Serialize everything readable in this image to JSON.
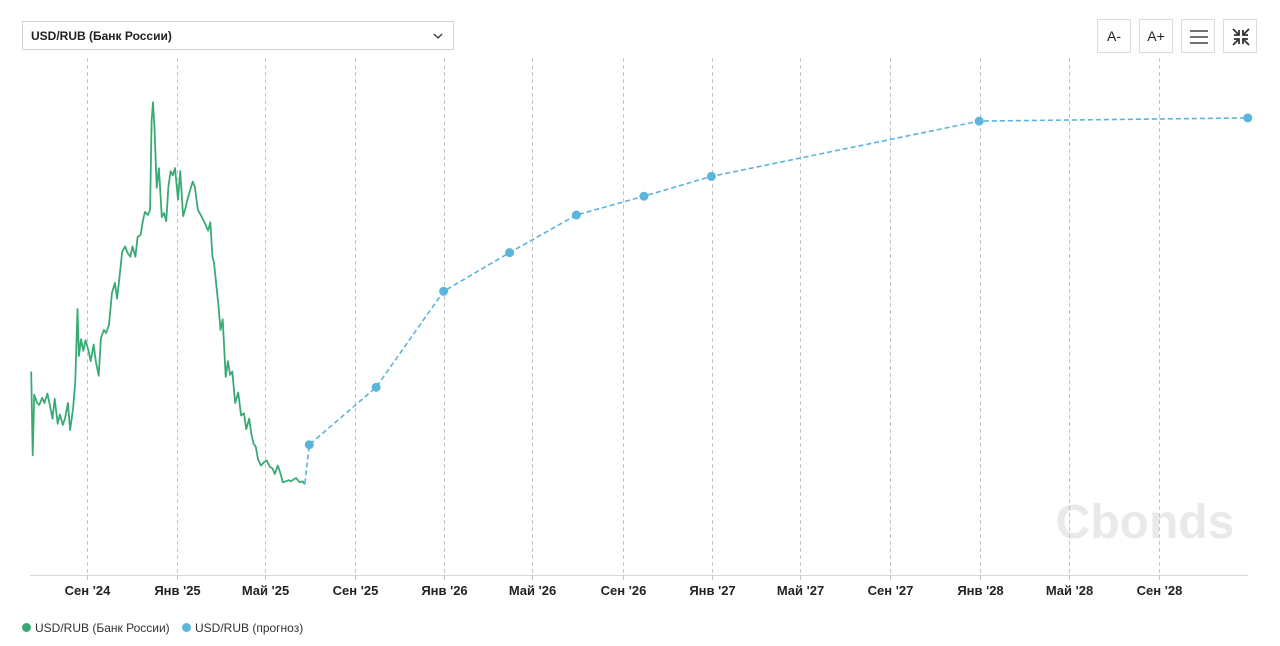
{
  "selector": {
    "value": "USD/RUB (Банк России)"
  },
  "toolbar": {
    "font_decrease": "A-",
    "font_increase": "A+"
  },
  "watermark": "Cbonds",
  "legend": [
    {
      "label": "USD/RUB (Банк России)",
      "color": "#3aaa74"
    },
    {
      "label": "USD/RUB (прогноз)",
      "color": "#5ab4dc"
    }
  ],
  "chart_data": {
    "type": "line",
    "x_tick_labels": [
      "Сен '24",
      "Янв '25",
      "Май '25",
      "Сен '25",
      "Янв '26",
      "Май '26",
      "Сен '26",
      "Янв '27",
      "Май '27",
      "Сен '27",
      "Янв '28",
      "Май '28",
      "Сен '28"
    ],
    "x_ticks": [
      "2024-09-01",
      "2025-01-01",
      "2025-05-01",
      "2025-09-01",
      "2026-01-01",
      "2026-05-01",
      "2026-09-01",
      "2027-01-01",
      "2027-05-01",
      "2027-09-01",
      "2028-01-01",
      "2028-05-01",
      "2028-09-01"
    ],
    "x_range": [
      "2024-06-15",
      "2028-12-31"
    ],
    "y_range": [
      70,
      120
    ],
    "y_axis_labels": false,
    "grid": "vertical dashed",
    "legend_position": "bottom-left",
    "series": [
      {
        "name": "USD/RUB (Банк России)",
        "color": "#3aaa74",
        "style": "solid",
        "points": [
          [
            "2024-06-17",
            89.0
          ],
          [
            "2024-06-19",
            81.0
          ],
          [
            "2024-06-21",
            86.8
          ],
          [
            "2024-06-25",
            86.0
          ],
          [
            "2024-06-28",
            85.8
          ],
          [
            "2024-07-02",
            86.5
          ],
          [
            "2024-07-05",
            86.0
          ],
          [
            "2024-07-09",
            86.9
          ],
          [
            "2024-07-12",
            85.9
          ],
          [
            "2024-07-16",
            84.5
          ],
          [
            "2024-07-19",
            86.4
          ],
          [
            "2024-07-23",
            84.0
          ],
          [
            "2024-07-26",
            84.9
          ],
          [
            "2024-07-30",
            83.9
          ],
          [
            "2024-08-02",
            84.5
          ],
          [
            "2024-08-06",
            86.0
          ],
          [
            "2024-08-09",
            83.4
          ],
          [
            "2024-08-13",
            85.5
          ],
          [
            "2024-08-16",
            88.1
          ],
          [
            "2024-08-19",
            95.0
          ],
          [
            "2024-08-21",
            90.5
          ],
          [
            "2024-08-24",
            92.1
          ],
          [
            "2024-08-27",
            91.0
          ],
          [
            "2024-08-30",
            92.0
          ],
          [
            "2024-09-03",
            91.0
          ],
          [
            "2024-09-06",
            90.0
          ],
          [
            "2024-09-10",
            91.6
          ],
          [
            "2024-09-13",
            90.0
          ],
          [
            "2024-09-17",
            88.6
          ],
          [
            "2024-09-20",
            92.2
          ],
          [
            "2024-09-24",
            93.0
          ],
          [
            "2024-09-27",
            92.7
          ],
          [
            "2024-10-01",
            93.5
          ],
          [
            "2024-10-05",
            96.5
          ],
          [
            "2024-10-09",
            97.5
          ],
          [
            "2024-10-12",
            96.0
          ],
          [
            "2024-10-16",
            98.5
          ],
          [
            "2024-10-19",
            100.5
          ],
          [
            "2024-10-23",
            101.0
          ],
          [
            "2024-10-26",
            100.4
          ],
          [
            "2024-10-30",
            100.0
          ],
          [
            "2024-11-02",
            101.0
          ],
          [
            "2024-11-06",
            100.0
          ],
          [
            "2024-11-09",
            101.9
          ],
          [
            "2024-11-13",
            102.1
          ],
          [
            "2024-11-16",
            103.4
          ],
          [
            "2024-11-19",
            104.3
          ],
          [
            "2024-11-23",
            104.0
          ],
          [
            "2024-11-26",
            104.5
          ],
          [
            "2024-11-28",
            113.0
          ],
          [
            "2024-11-30",
            114.8
          ],
          [
            "2024-12-02",
            112.3
          ],
          [
            "2024-12-05",
            106.6
          ],
          [
            "2024-12-08",
            108.5
          ],
          [
            "2024-12-12",
            103.8
          ],
          [
            "2024-12-15",
            104.2
          ],
          [
            "2024-12-18",
            103.4
          ],
          [
            "2024-12-21",
            106.7
          ],
          [
            "2024-12-24",
            108.2
          ],
          [
            "2024-12-27",
            107.8
          ],
          [
            "2024-12-30",
            108.5
          ],
          [
            "2025-01-03",
            105.5
          ],
          [
            "2025-01-06",
            108.2
          ],
          [
            "2025-01-10",
            103.9
          ],
          [
            "2025-01-13",
            104.6
          ],
          [
            "2025-01-16",
            105.5
          ],
          [
            "2025-01-20",
            106.5
          ],
          [
            "2025-01-23",
            107.2
          ],
          [
            "2025-01-26",
            106.7
          ],
          [
            "2025-01-30",
            104.5
          ],
          [
            "2025-02-03",
            104.0
          ],
          [
            "2025-02-06",
            103.6
          ],
          [
            "2025-02-10",
            103.0
          ],
          [
            "2025-02-13",
            102.5
          ],
          [
            "2025-02-16",
            103.3
          ],
          [
            "2025-02-19",
            100.0
          ],
          [
            "2025-02-21",
            99.5
          ],
          [
            "2025-02-24",
            97.5
          ],
          [
            "2025-02-27",
            95.5
          ],
          [
            "2025-03-02",
            93.0
          ],
          [
            "2025-03-05",
            94.0
          ],
          [
            "2025-03-09",
            88.5
          ],
          [
            "2025-03-12",
            90.0
          ],
          [
            "2025-03-15",
            88.7
          ],
          [
            "2025-03-18",
            89.0
          ],
          [
            "2025-03-22",
            86.0
          ],
          [
            "2025-03-26",
            87.0
          ],
          [
            "2025-03-30",
            84.8
          ],
          [
            "2025-04-03",
            85.0
          ],
          [
            "2025-04-06",
            83.5
          ],
          [
            "2025-04-10",
            84.5
          ],
          [
            "2025-04-13",
            83.0
          ],
          [
            "2025-04-16",
            82.1
          ],
          [
            "2025-04-19",
            81.8
          ],
          [
            "2025-04-22",
            80.6
          ],
          [
            "2025-04-26",
            80.0
          ],
          [
            "2025-04-30",
            80.3
          ],
          [
            "2025-05-04",
            80.5
          ],
          [
            "2025-05-08",
            79.9
          ],
          [
            "2025-05-12",
            79.7
          ],
          [
            "2025-05-15",
            79.2
          ],
          [
            "2025-05-19",
            80.0
          ],
          [
            "2025-05-22",
            79.4
          ],
          [
            "2025-05-26",
            78.4
          ],
          [
            "2025-05-30",
            78.5
          ],
          [
            "2025-06-03",
            78.6
          ],
          [
            "2025-06-06",
            78.5
          ],
          [
            "2025-06-10",
            78.7
          ],
          [
            "2025-06-13",
            78.8
          ],
          [
            "2025-06-18",
            78.4
          ],
          [
            "2025-06-22",
            78.5
          ],
          [
            "2025-06-25",
            78.2
          ]
        ]
      },
      {
        "name": "USD/RUB (прогноз)",
        "color": "#5ab4dc",
        "style": "dashed",
        "points": [
          [
            "2025-06-25",
            78.3
          ],
          [
            "2025-07-01",
            82.0
          ],
          [
            "2025-09-30",
            87.5
          ],
          [
            "2025-12-31",
            96.7
          ],
          [
            "2026-03-31",
            100.4
          ],
          [
            "2026-06-30",
            104.0
          ],
          [
            "2026-09-30",
            105.8
          ],
          [
            "2026-12-31",
            107.7
          ],
          [
            "2027-12-31",
            113.0
          ],
          [
            "2028-12-31",
            113.3
          ]
        ],
        "markers": [
          [
            "2025-07-01",
            82.0
          ],
          [
            "2025-09-30",
            87.5
          ],
          [
            "2025-12-31",
            96.7
          ],
          [
            "2026-03-31",
            100.4
          ],
          [
            "2026-06-30",
            104.0
          ],
          [
            "2026-09-30",
            105.8
          ],
          [
            "2026-12-31",
            107.7
          ],
          [
            "2027-12-31",
            113.0
          ],
          [
            "2028-12-31",
            113.3
          ]
        ]
      }
    ]
  }
}
